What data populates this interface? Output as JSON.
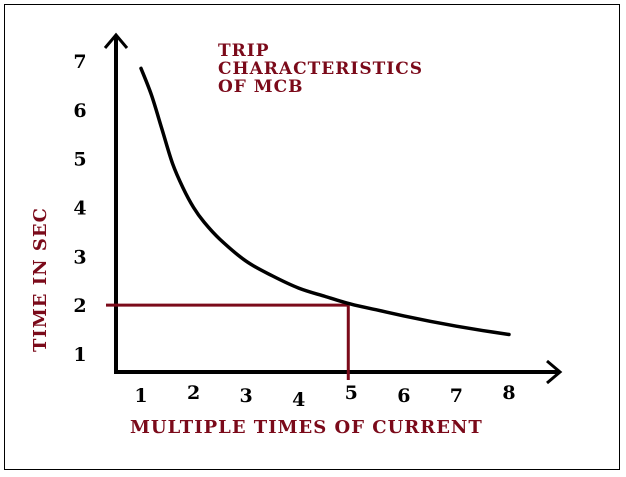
{
  "chart_data": {
    "type": "line",
    "title_lines": [
      "TRIP",
      "CHARACTERISTICS",
      "OF MCB"
    ],
    "xlabel": "MULTIPLE TIMES OF CURRENT",
    "ylabel": "TIME IN SEC",
    "x_ticks": [
      "1",
      "2",
      "3",
      "4",
      "5",
      "6",
      "7",
      "8"
    ],
    "y_ticks": [
      "1",
      "2",
      "3",
      "4",
      "5",
      "6",
      "7"
    ],
    "xlim": [
      0.5,
      9
    ],
    "ylim": [
      0.6,
      7.9
    ],
    "series": [
      {
        "x": [
          1.0,
          1.2,
          1.4,
          1.6,
          1.8,
          2.0,
          2.2,
          2.5,
          3.0,
          3.5,
          4.0,
          4.5,
          5.0,
          5.5,
          6.0,
          6.5,
          7.0,
          7.5,
          8.0
        ],
        "y": [
          6.85,
          6.3,
          5.6,
          4.9,
          4.4,
          4.0,
          3.7,
          3.35,
          2.9,
          2.6,
          2.35,
          2.18,
          2.02,
          1.9,
          1.78,
          1.67,
          1.57,
          1.48,
          1.4
        ],
        "color": "#000000"
      }
    ],
    "guide_lines": {
      "x": 5,
      "y": 2,
      "color": "#7b0a1a"
    }
  }
}
